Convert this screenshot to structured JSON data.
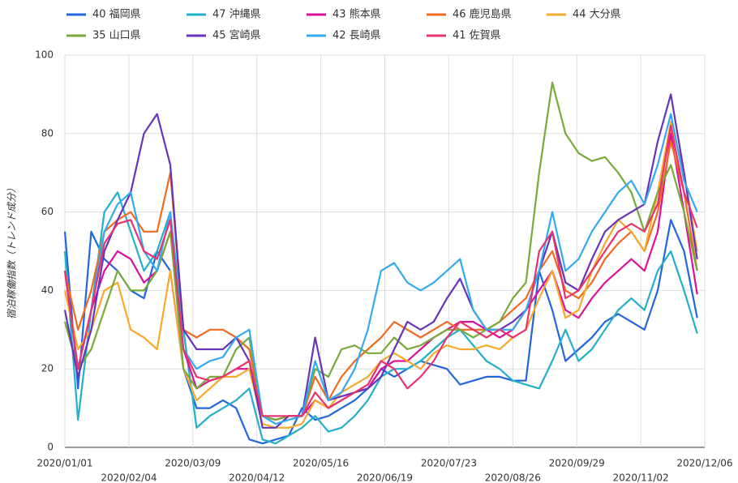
{
  "chart_data": {
    "type": "line",
    "y_label": "宿泊稼働指数（トレンド成分）",
    "x": [
      "2020/01/01",
      "2020/01/08",
      "2020/01/15",
      "2020/01/22",
      "2020/01/29",
      "2020/02/05",
      "2020/02/12",
      "2020/02/19",
      "2020/02/26",
      "2020/03/04",
      "2020/03/11",
      "2020/03/18",
      "2020/03/25",
      "2020/04/01",
      "2020/04/08",
      "2020/04/15",
      "2020/04/22",
      "2020/04/29",
      "2020/05/06",
      "2020/05/13",
      "2020/05/20",
      "2020/05/27",
      "2020/06/03",
      "2020/06/10",
      "2020/06/17",
      "2020/06/24",
      "2020/07/01",
      "2020/07/08",
      "2020/07/15",
      "2020/07/22",
      "2020/07/29",
      "2020/08/05",
      "2020/08/12",
      "2020/08/19",
      "2020/08/26",
      "2020/09/02",
      "2020/09/09",
      "2020/09/16",
      "2020/09/23",
      "2020/09/30",
      "2020/10/07",
      "2020/10/14",
      "2020/10/21",
      "2020/10/28",
      "2020/11/04",
      "2020/11/11",
      "2020/11/18",
      "2020/11/25",
      "2020/12/02"
    ],
    "series": [
      {
        "name": "40 福岡県",
        "color": "#2266dd",
        "values": [
          55,
          15,
          55,
          48,
          45,
          40,
          38,
          50,
          45,
          20,
          10,
          10,
          12,
          10,
          2,
          1,
          2,
          3,
          10,
          7,
          8,
          10,
          12,
          15,
          20,
          18,
          20,
          22,
          21,
          20,
          16,
          17,
          18,
          18,
          17,
          17,
          45,
          35,
          22,
          25,
          28,
          32,
          34,
          32,
          30,
          40,
          58,
          50,
          33
        ]
      },
      {
        "name": "47 沖縄県",
        "color": "#22b0c8",
        "values": [
          50,
          7,
          35,
          60,
          65,
          55,
          45,
          50,
          60,
          30,
          5,
          8,
          10,
          12,
          15,
          2,
          1,
          3,
          5,
          8,
          4,
          5,
          8,
          12,
          18,
          20,
          20,
          22,
          25,
          28,
          30,
          26,
          22,
          20,
          17,
          16,
          15,
          22,
          30,
          22,
          25,
          30,
          35,
          38,
          35,
          45,
          50,
          40,
          29
        ]
      },
      {
        "name": "43 熊本県",
        "color": "#dd1199",
        "values": [
          45,
          20,
          35,
          45,
          50,
          48,
          42,
          45,
          55,
          25,
          15,
          17,
          18,
          20,
          20,
          8,
          7,
          8,
          8,
          12,
          10,
          12,
          14,
          15,
          20,
          22,
          22,
          25,
          28,
          30,
          32,
          32,
          30,
          28,
          30,
          35,
          40,
          45,
          35,
          33,
          38,
          42,
          45,
          48,
          45,
          55,
          80,
          60,
          39
        ]
      },
      {
        "name": "46 鹿児島県",
        "color": "#f06a22",
        "values": [
          45,
          30,
          40,
          55,
          58,
          60,
          55,
          55,
          70,
          30,
          28,
          30,
          30,
          28,
          25,
          8,
          7,
          8,
          8,
          18,
          12,
          18,
          22,
          25,
          28,
          32,
          30,
          28,
          30,
          32,
          30,
          30,
          30,
          32,
          35,
          38,
          45,
          50,
          40,
          38,
          42,
          48,
          52,
          55,
          50,
          60,
          78,
          65,
          45
        ]
      },
      {
        "name": "44 大分県",
        "color": "#f8a82a",
        "values": [
          40,
          25,
          30,
          40,
          42,
          30,
          28,
          25,
          45,
          20,
          12,
          15,
          18,
          18,
          20,
          6,
          5,
          5,
          6,
          12,
          10,
          14,
          16,
          18,
          22,
          24,
          22,
          20,
          24,
          26,
          25,
          25,
          26,
          25,
          28,
          30,
          38,
          45,
          33,
          35,
          45,
          52,
          58,
          55,
          50,
          65,
          83,
          70,
          50
        ]
      },
      {
        "name": "35 山口県",
        "color": "#77aa3a",
        "values": [
          32,
          20,
          25,
          35,
          45,
          40,
          40,
          45,
          55,
          20,
          15,
          18,
          18,
          25,
          28,
          8,
          7,
          8,
          8,
          20,
          18,
          25,
          26,
          24,
          24,
          28,
          25,
          26,
          28,
          30,
          30,
          28,
          30,
          32,
          38,
          42,
          70,
          93,
          80,
          75,
          73,
          74,
          70,
          65,
          55,
          65,
          72,
          60,
          45
        ]
      },
      {
        "name": "45 宮崎県",
        "color": "#6633bb",
        "values": [
          35,
          18,
          30,
          50,
          58,
          65,
          80,
          85,
          72,
          30,
          25,
          25,
          25,
          28,
          22,
          5,
          5,
          8,
          8,
          28,
          12,
          13,
          14,
          15,
          18,
          25,
          32,
          30,
          32,
          38,
          43,
          35,
          30,
          30,
          32,
          35,
          45,
          55,
          42,
          40,
          48,
          55,
          58,
          60,
          62,
          78,
          90,
          70,
          48
        ]
      },
      {
        "name": "42 長崎県",
        "color": "#33aaee",
        "values": [
          45,
          20,
          35,
          55,
          62,
          65,
          50,
          45,
          60,
          25,
          20,
          22,
          23,
          28,
          30,
          8,
          6,
          7,
          8,
          22,
          12,
          14,
          20,
          30,
          45,
          47,
          42,
          40,
          42,
          45,
          48,
          35,
          30,
          30,
          30,
          35,
          45,
          60,
          45,
          48,
          55,
          60,
          65,
          68,
          62,
          72,
          85,
          68,
          60
        ]
      },
      {
        "name": "41 佐賀県",
        "color": "#e8336e",
        "values": [
          45,
          20,
          35,
          52,
          57,
          58,
          50,
          48,
          58,
          25,
          18,
          17,
          18,
          20,
          22,
          8,
          8,
          8,
          8,
          14,
          10,
          12,
          14,
          16,
          22,
          20,
          15,
          18,
          22,
          28,
          32,
          30,
          28,
          30,
          28,
          30,
          50,
          55,
          38,
          40,
          45,
          50,
          55,
          57,
          55,
          62,
          82,
          65,
          56
        ]
      }
    ],
    "xlim": [
      "2020/01/01",
      "2020/12/06"
    ],
    "xticks": [
      "2020/01/01",
      "2020/02/04",
      "2020/03/09",
      "2020/04/12",
      "2020/05/16",
      "2020/06/19",
      "2020/07/23",
      "2020/08/26",
      "2020/09/29",
      "2020/11/02",
      "2020/12/06"
    ],
    "ylim": [
      0,
      100
    ],
    "yticks": [
      0,
      20,
      40,
      60,
      80,
      100
    ],
    "grid": true,
    "legend": "top"
  }
}
